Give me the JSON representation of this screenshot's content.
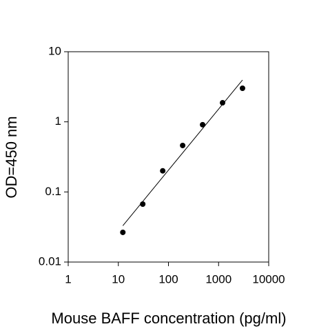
{
  "chart_data": {
    "type": "scatter",
    "x_label": "Mouse BAFF concentration (pg/ml)",
    "y_label": "OD=450 nm",
    "log_x": true,
    "log_y": true,
    "xlim": [
      1,
      10000
    ],
    "ylim": [
      0.01,
      10
    ],
    "xticks": [
      1,
      10,
      100,
      1000,
      10000
    ],
    "yticks": [
      0.01,
      0.1,
      1,
      10
    ],
    "series": [
      {
        "kind": "scatter",
        "color": "#000000",
        "x": [
          12.3,
          30.7,
          76.8,
          192,
          480,
          1200,
          3000
        ],
        "values": [
          0.0265,
          0.067,
          0.2,
          0.46,
          0.91,
          1.87,
          3.01
        ]
      },
      {
        "kind": "line",
        "color": "#000000",
        "x": [
          12.3,
          3000
        ],
        "values": [
          0.033,
          3.95
        ]
      }
    ]
  }
}
